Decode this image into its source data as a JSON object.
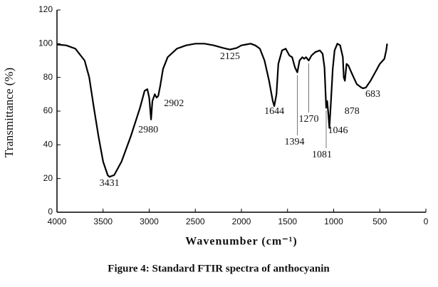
{
  "chart_data": {
    "type": "line",
    "caption": "Figure 4: Standard FTIR spectra of anthocyanin",
    "xlabel": "Wavenumber (cm⁻¹)",
    "ylabel": "Transmittance (%)",
    "xlim": [
      4000,
      0
    ],
    "ylim": [
      0,
      120
    ],
    "xticks": [
      4000,
      3500,
      3000,
      2500,
      2000,
      1500,
      1000,
      500,
      0
    ],
    "yticks": [
      0,
      20,
      40,
      60,
      80,
      100,
      120
    ],
    "color": "#000000",
    "x": [
      4000,
      3900,
      3800,
      3700,
      3650,
      3600,
      3550,
      3500,
      3450,
      3431,
      3380,
      3300,
      3200,
      3100,
      3050,
      3020,
      3000,
      2980,
      2965,
      2940,
      2920,
      2902,
      2880,
      2850,
      2800,
      2700,
      2600,
      2500,
      2400,
      2300,
      2200,
      2125,
      2050,
      2000,
      1950,
      1900,
      1850,
      1800,
      1750,
      1700,
      1660,
      1644,
      1620,
      1600,
      1560,
      1520,
      1480,
      1450,
      1420,
      1394,
      1370,
      1340,
      1320,
      1300,
      1270,
      1240,
      1200,
      1150,
      1120,
      1100,
      1081,
      1070,
      1060,
      1046,
      1030,
      1010,
      990,
      960,
      930,
      900,
      890,
      878,
      860,
      840,
      800,
      750,
      700,
      683,
      650,
      600,
      550,
      500,
      450,
      430,
      420
    ],
    "values": [
      99.5,
      99,
      97,
      90,
      80,
      62,
      45,
      30,
      22,
      21,
      22,
      30,
      45,
      62,
      72,
      73,
      68,
      55,
      66,
      70,
      68,
      69,
      75,
      85,
      92,
      97,
      99,
      100,
      100,
      99,
      97.5,
      96.5,
      97.5,
      99,
      99.5,
      100,
      99,
      97,
      90,
      78,
      66,
      63,
      70,
      88,
      96,
      97,
      93,
      92,
      86,
      83,
      90,
      92,
      91,
      92,
      90,
      93,
      95,
      96,
      94,
      86,
      62,
      66,
      60,
      50,
      65,
      85,
      96,
      100,
      99,
      92,
      80,
      78,
      88,
      87,
      82,
      76,
      74,
      73.5,
      74,
      78,
      83,
      88,
      91,
      96,
      100
    ],
    "peaks": [
      3431,
      2980,
      2902,
      2125,
      1644,
      1394,
      1270,
      1081,
      1046,
      878,
      683
    ]
  }
}
